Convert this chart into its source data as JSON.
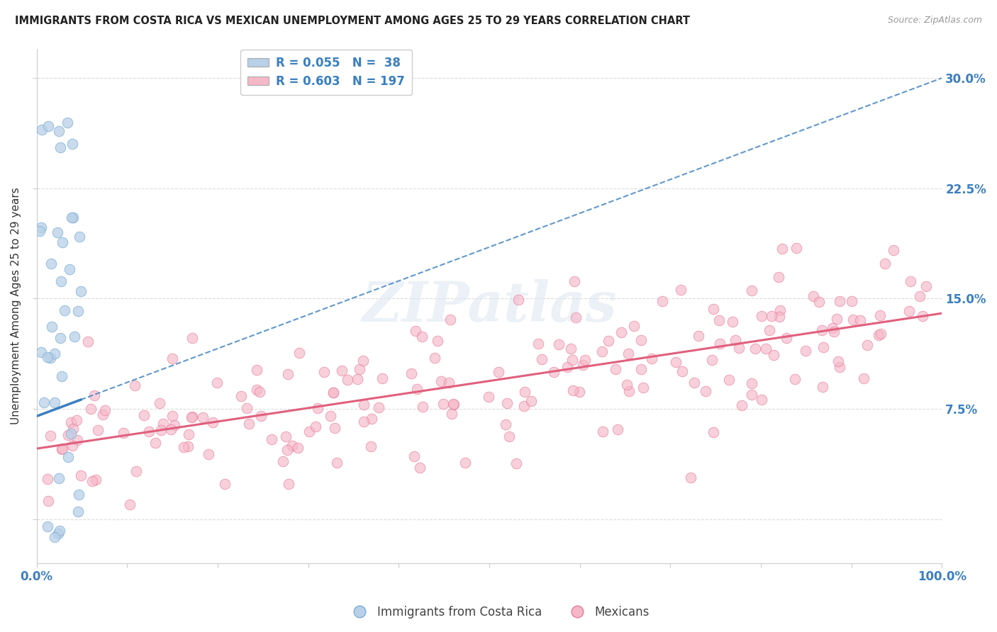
{
  "title": "IMMIGRANTS FROM COSTA RICA VS MEXICAN UNEMPLOYMENT AMONG AGES 25 TO 29 YEARS CORRELATION CHART",
  "source": "Source: ZipAtlas.com",
  "ylabel": "Unemployment Among Ages 25 to 29 years",
  "xlim": [
    0,
    1.0
  ],
  "ylim": [
    -0.03,
    0.32
  ],
  "yticks": [
    0.0,
    0.075,
    0.15,
    0.225,
    0.3
  ],
  "ytick_labels": [
    "",
    "7.5%",
    "15.0%",
    "22.5%",
    "30.0%"
  ],
  "blue_color": "#b8d0e8",
  "blue_edge": "#7aafd4",
  "blue_line_color": "#3a7fc1",
  "pink_color": "#f5b8c8",
  "pink_edge": "#e87a9a",
  "pink_line_color": "#e0607e",
  "grid_color": "#cccccc",
  "bg_color": "#ffffff",
  "title_color": "#222222",
  "tick_label_color": "#3a7fc1",
  "watermark_color": "#dce6f0",
  "seed": 7
}
